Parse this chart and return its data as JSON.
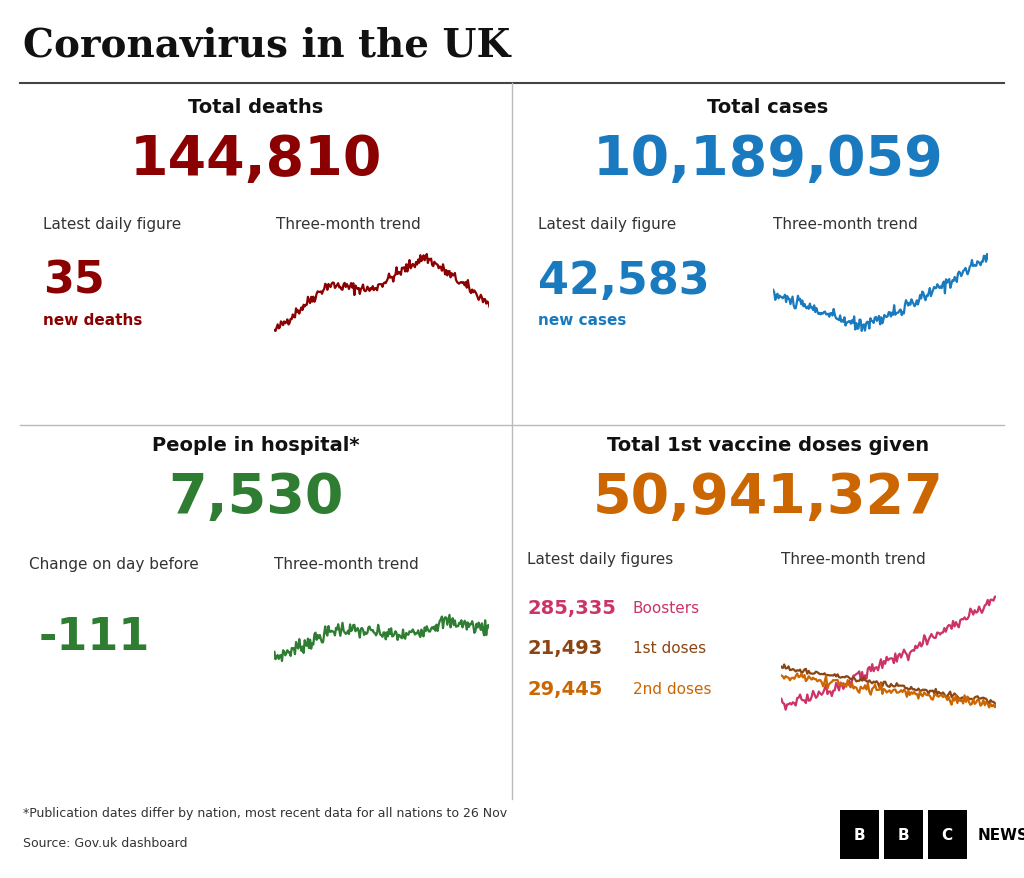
{
  "title": "Coronavirus in the UK",
  "background_color": "#ffffff",
  "footnote": "*Publication dates differ by nation, most recent data for all nations to 26 Nov",
  "source": "Source: Gov.uk dashboard",
  "deaths_label": "Total deaths",
  "deaths_total": "144,810",
  "deaths_total_color": "#8b0000",
  "deaths_daily_label": "Latest daily figure",
  "deaths_daily": "35",
  "deaths_daily_sub": "new deaths",
  "deaths_color": "#8b0000",
  "cases_label": "Total cases",
  "cases_total": "10,189,059",
  "cases_total_color": "#1a7abf",
  "cases_daily_label": "Latest daily figure",
  "cases_daily": "42,583",
  "cases_daily_sub": "new cases",
  "cases_color": "#1a7abf",
  "hosp_label": "People in hospital*",
  "hosp_total": "7,530",
  "hosp_total_color": "#2e7d32",
  "hosp_daily_label": "Change on day before",
  "hosp_daily": "-111",
  "hosp_color": "#2e7d32",
  "vax_label": "Total 1st vaccine doses given",
  "vax_total": "50,941,327",
  "vax_total_color": "#cc6600",
  "vax_daily_label": "Latest daily figures",
  "trend_label": "Three-month trend",
  "vax_items": [
    {
      "value": "285,335",
      "label": "Boosters",
      "color": "#cc3366"
    },
    {
      "value": "21,493",
      "label": "1st doses",
      "color": "#8b4513"
    },
    {
      "value": "29,445",
      "label": "2nd doses",
      "color": "#cc6600"
    }
  ],
  "bbc_letters": [
    "B",
    "B",
    "C"
  ]
}
